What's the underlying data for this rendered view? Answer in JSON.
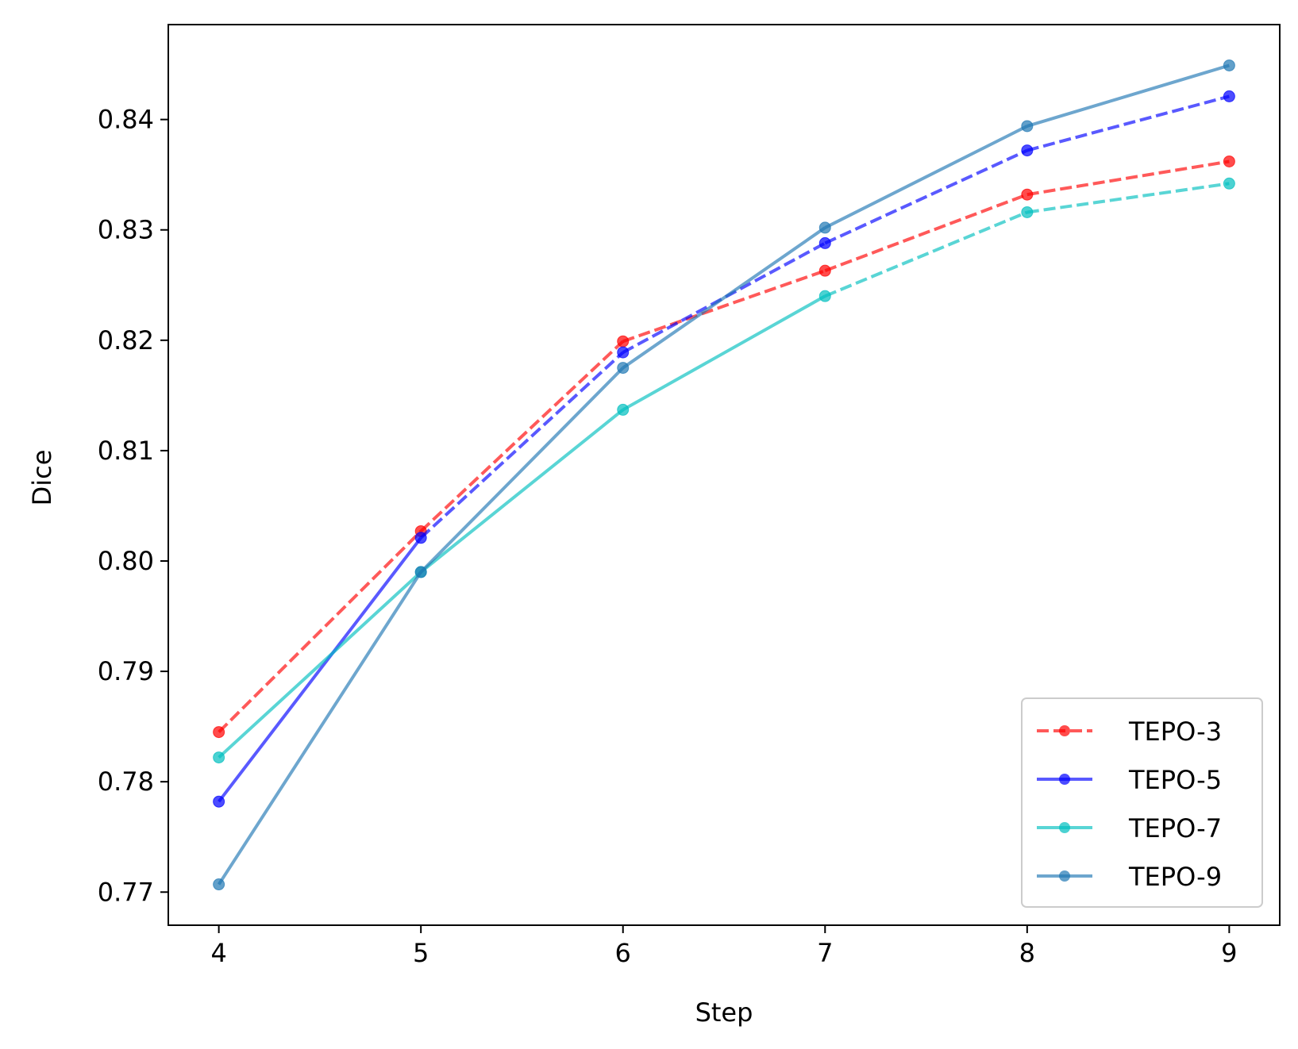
{
  "chart_data": {
    "type": "line",
    "title": "",
    "xlabel": "Step",
    "ylabel": "Dice",
    "x": [
      4,
      5,
      6,
      7,
      8,
      9
    ],
    "xlim": [
      3.75,
      9.25
    ],
    "ylim": [
      0.767,
      0.8486
    ],
    "xticks": [
      "4",
      "5",
      "6",
      "7",
      "8",
      "9"
    ],
    "yticks": [
      0.77,
      0.78,
      0.79,
      0.8,
      0.81,
      0.82,
      0.83,
      0.84
    ],
    "ytick_labels": [
      "0.77",
      "0.78",
      "0.79",
      "0.80",
      "0.81",
      "0.82",
      "0.83",
      "0.84"
    ],
    "grid": false,
    "legend_position": "bottom-right",
    "series": [
      {
        "name": "TEPO-3",
        "color": "#ff0000",
        "values": [
          0.7845,
          0.8027,
          0.8199,
          0.8263,
          0.8332,
          0.8362
        ],
        "dashes": [
          true,
          true,
          true,
          true,
          true
        ]
      },
      {
        "name": "TEPO-5",
        "color": "#0000ff",
        "values": [
          0.7782,
          0.8021,
          0.8189,
          0.8288,
          0.8372,
          0.8421
        ],
        "dashes": [
          false,
          true,
          true,
          true,
          true
        ]
      },
      {
        "name": "TEPO-7",
        "color": "#00bfbf",
        "values": [
          0.7822,
          0.799,
          0.8137,
          0.824,
          0.8316,
          0.8342
        ],
        "dashes": [
          false,
          false,
          false,
          true,
          true
        ]
      },
      {
        "name": "TEPO-9",
        "color": "#1f77b4",
        "values": [
          0.7707,
          0.799,
          0.8175,
          0.8302,
          0.8394,
          0.8449
        ],
        "dashes": [
          false,
          false,
          false,
          false,
          false
        ]
      }
    ]
  }
}
